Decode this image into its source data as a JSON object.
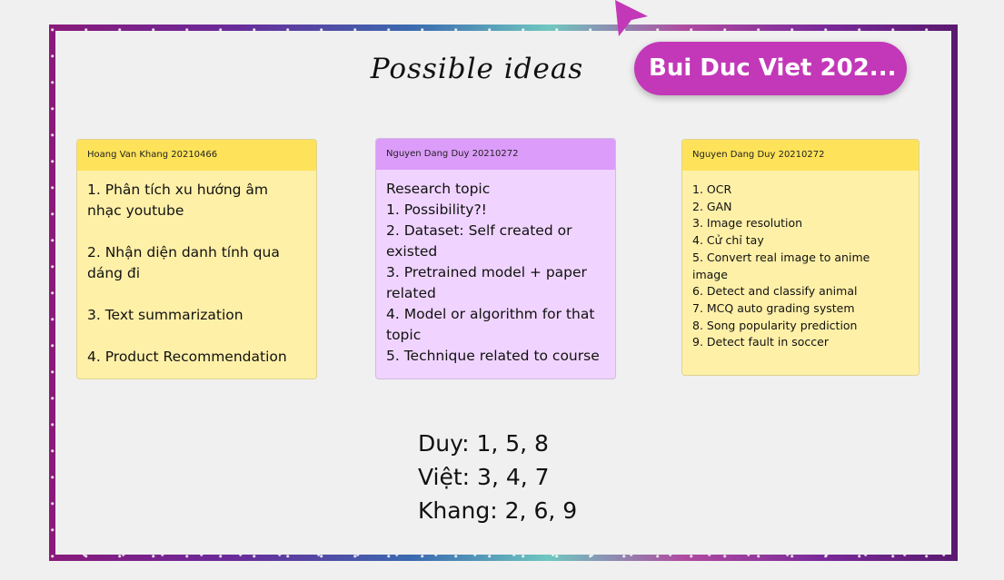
{
  "board": {
    "title": "Possible ideas",
    "user_pill": "Bui Duc Viet 202..."
  },
  "notes": [
    {
      "color": "yellow",
      "author": "Hoang Van Khang 20210466",
      "body": "1. Phân tích xu hướng âm nhạc youtube\n\n2. Nhận diện danh tính qua dáng đi\n\n3. Text summarization\n\n4. Product Recommendation"
    },
    {
      "color": "purple",
      "author": "Nguyen Dang Duy 20210272",
      "body": "Research topic\n1. Possibility?!\n2. Dataset: Self created or existed\n3. Pretrained model + paper related\n4. Model or algorithm for that topic\n5. Technique related to course"
    },
    {
      "color": "yellow",
      "author": "Nguyen Dang Duy 20210272",
      "body": "1. OCR\n2. GAN\n3. Image resolution\n4. Cử chỉ tay\n5. Convert real image to anime image\n6. Detect and classify animal\n7. MCQ auto grading system\n8. Song popularity prediction\n9. Detect fault in soccer"
    }
  ],
  "assignments": [
    "Duy: 1, 5, 8",
    "Việt: 3, 4, 7",
    "Khang: 2, 6, 9"
  ],
  "colors": {
    "pill": "#c238b8",
    "note_yellow": "#fff0a8",
    "note_yellow_header": "#fee35a",
    "note_purple": "#f0d4ff",
    "note_purple_header": "#dc9cfa"
  }
}
